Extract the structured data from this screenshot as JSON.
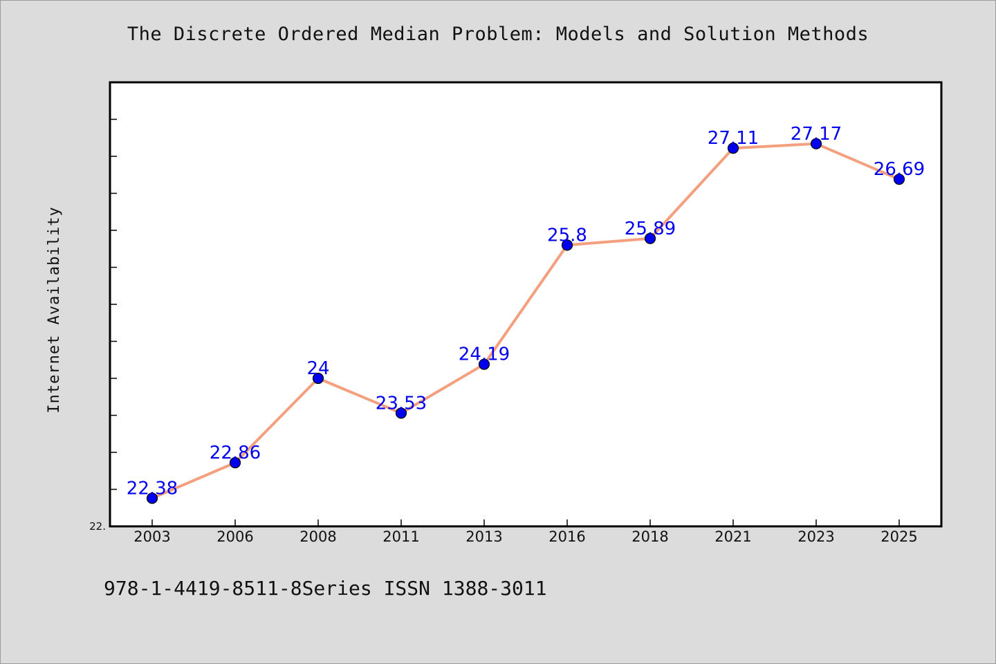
{
  "title": "The Discrete Ordered Median Problem: Models and Solution Methods",
  "footer": "978-1-4419-8511-8Series ISSN 1388-3011",
  "colors": {
    "background": "#dcdcdc",
    "plot_background": "#ffffff",
    "line": "#f4a07f",
    "marker": "#0000ee",
    "data_label": "#0000ee"
  },
  "chart_data": {
    "type": "line",
    "title": "The Discrete Ordered Median Problem: Models and Solution Methods",
    "xlabel": "",
    "ylabel": "Internet Availability",
    "categories": [
      "2003",
      "2006",
      "2008",
      "2011",
      "2013",
      "2016",
      "2018",
      "2021",
      "2023",
      "2025"
    ],
    "series": [
      {
        "values": [
          22.38,
          22.86,
          24,
          23.53,
          24.19,
          25.8,
          25.89,
          27.11,
          27.17,
          26.69
        ]
      }
    ],
    "data_labels": [
      "22.38",
      "22.86",
      "24",
      "23.53",
      "24.19",
      "25.8",
      "25.89",
      "27.11",
      "27.17",
      "26.69"
    ],
    "y_min_label": "22.",
    "ylim": [
      22,
      28
    ],
    "grid": false,
    "legend": "none"
  }
}
